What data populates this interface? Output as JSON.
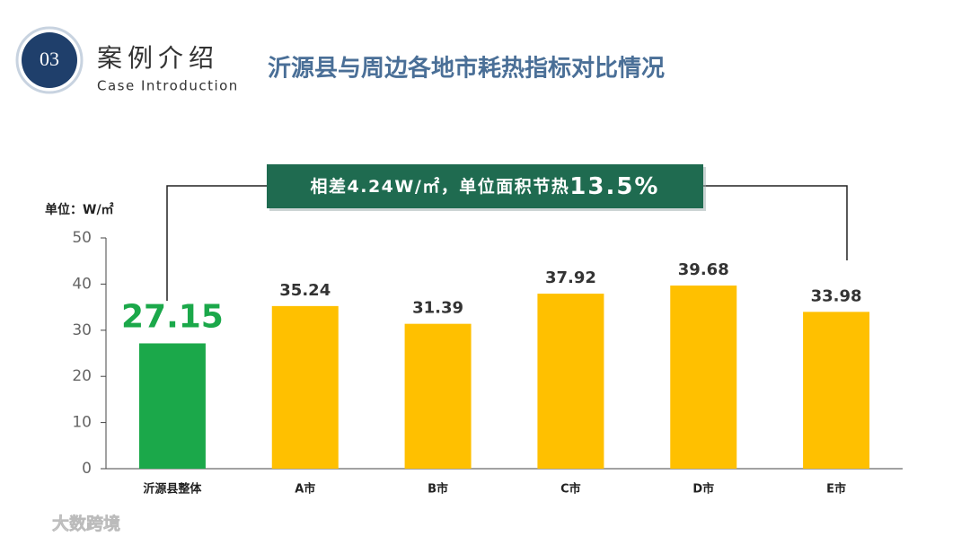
{
  "header": {
    "number": "03",
    "title": "案例介绍",
    "subtitle": "Case Introduction"
  },
  "watermark": "大数跨境",
  "chart_data": {
    "type": "bar",
    "title": "沂源县与周边各地市耗热指标对比情况",
    "y_label": "单位：W/㎡",
    "annotation": {
      "text": "相差4.24W/㎡，单位面积节热",
      "highlight": "13.5%"
    },
    "categories": [
      "沂源县整体",
      "A市",
      "B市",
      "C市",
      "D市",
      "E市"
    ],
    "values": [
      27.15,
      35.24,
      31.39,
      37.92,
      39.68,
      33.98
    ],
    "colors": [
      "#1ba84a",
      "#ffc000",
      "#ffc000",
      "#ffc000",
      "#ffc000",
      "#ffc000"
    ],
    "ylim": [
      0,
      50
    ],
    "yticks": [
      0,
      10,
      20,
      30,
      40,
      50
    ],
    "grid": false
  }
}
